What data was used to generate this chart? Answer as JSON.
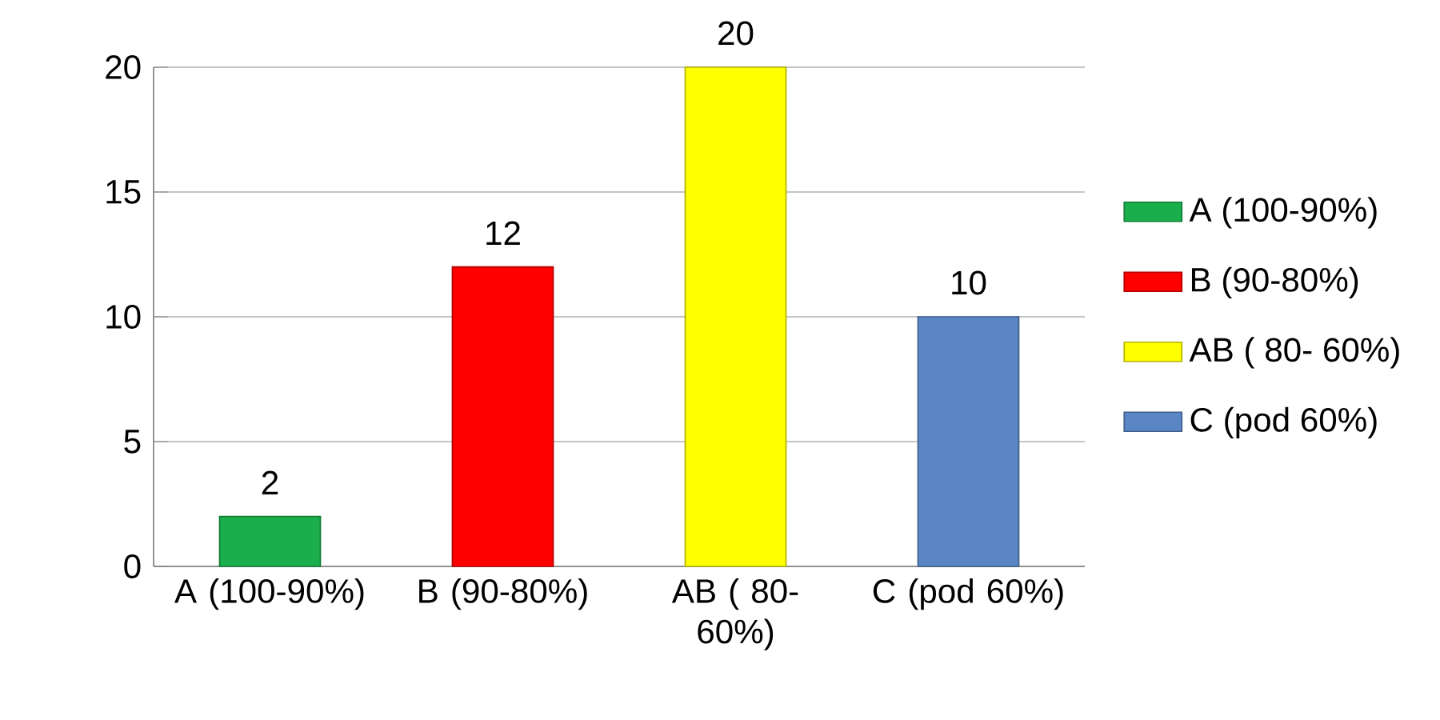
{
  "chart_data": {
    "type": "bar",
    "categories": [
      "A (100-90%)",
      "B (90-80%)",
      "AB ( 80- 60%)",
      "C (pod 60%)"
    ],
    "series": [
      {
        "name": "A (100-90%)",
        "color": "#1aaf4c",
        "values": [
          2,
          null,
          null,
          null
        ]
      },
      {
        "name": "B (90-80%)",
        "color": "#ff0000",
        "values": [
          null,
          12,
          null,
          null
        ]
      },
      {
        "name": "AB ( 80- 60%)",
        "color": "#ffff00",
        "values": [
          null,
          null,
          20,
          null
        ]
      },
      {
        "name": "C (pod 60%)",
        "color": "#5b86c5",
        "values": [
          null,
          null,
          null,
          10
        ]
      }
    ],
    "ylim": [
      0,
      20
    ],
    "yticks": [
      0,
      5,
      10,
      15,
      20
    ],
    "grid": "y",
    "legend": "right",
    "data_labels": true
  }
}
